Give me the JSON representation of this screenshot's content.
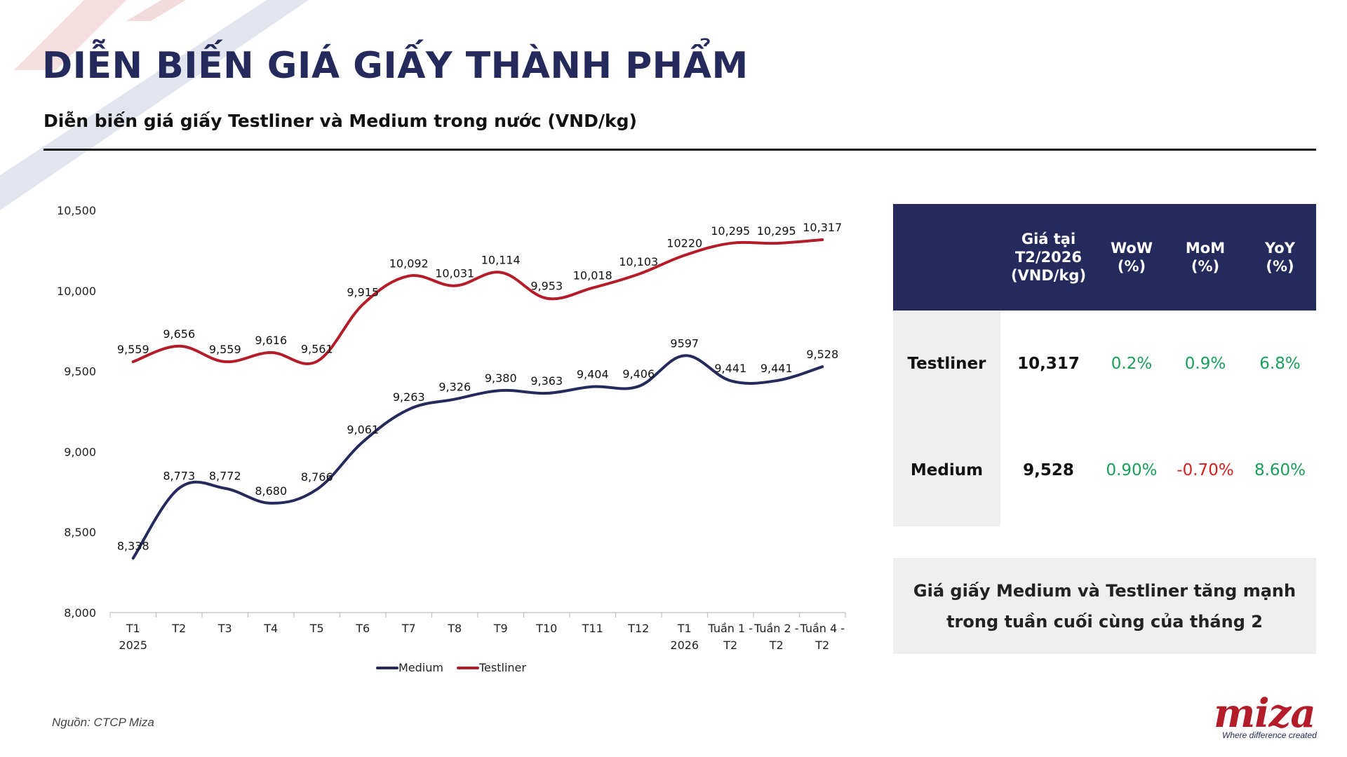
{
  "title": "DIỄN BIẾN GIÁ GIẤY THÀNH PHẨM",
  "subtitle": "Diễn biến giá giấy Testliner và Medium trong nước (VND/kg)",
  "colors": {
    "navy": "#252a5c",
    "red": "#b51c2a",
    "green": "#1a9e5a",
    "negative": "#d42020",
    "panel": "#efefef"
  },
  "chart_data": {
    "type": "line",
    "categories": [
      "T1\n2025",
      "T2",
      "T3",
      "T4",
      "T5",
      "T6",
      "T7",
      "T8",
      "T9",
      "T10",
      "T11",
      "T12",
      "T1\n2026",
      "Tuần 1 -\nT2",
      "Tuần 2 -\nT2",
      "Tuần 4 -\nT2"
    ],
    "ylim": [
      8000,
      10500
    ],
    "yticks": [
      8000,
      8500,
      9000,
      9500,
      10000,
      10500
    ],
    "ytick_labels": [
      "8,000",
      "8,500",
      "9,000",
      "9,500",
      "10,000",
      "10,500"
    ],
    "legend_position": "bottom-center",
    "series": [
      {
        "name": "Medium",
        "color": "#252a5c",
        "values": [
          8338,
          8773,
          8772,
          8680,
          8766,
          9061,
          9263,
          9326,
          9380,
          9363,
          9404,
          9406,
          9597,
          9441,
          9441,
          9528
        ],
        "labels": [
          "8,338",
          "8,773",
          "8,772",
          "8,680",
          "8,766",
          "9,061",
          "9,263",
          "9,326",
          "9,380",
          "9,363",
          "9,404",
          "9,406",
          "9597",
          "9,441",
          "9,441",
          "9,528"
        ]
      },
      {
        "name": "Testliner",
        "color": "#b51c2a",
        "values": [
          9559,
          9656,
          9559,
          9616,
          9561,
          9915,
          10092,
          10031,
          10114,
          9953,
          10018,
          10103,
          10220,
          10295,
          10295,
          10317
        ],
        "labels": [
          "9,559",
          "9,656",
          "9,559",
          "9,616",
          "9,561",
          "9,915",
          "10,092",
          "10,031",
          "10,114",
          "9,953",
          "10,018",
          "10,103",
          "10220",
          "10,295",
          "10,295",
          "10,317"
        ]
      }
    ]
  },
  "table": {
    "headers": {
      "price": "Giá tại\nT2/2026\n(VND/kg)",
      "wow": "WoW\n(%)",
      "mom": "MoM\n(%)",
      "yoy": "YoY\n(%)"
    },
    "rows": [
      {
        "name": "Testliner",
        "price": "10,317",
        "wow": "0.2%",
        "mom": "0.9%",
        "yoy": "6.8%"
      },
      {
        "name": "Medium",
        "price": "9,528",
        "wow": "0.90%",
        "mom": "-0.70%",
        "yoy": "8.60%"
      }
    ]
  },
  "note": "Giá giấy Medium và Testliner tăng mạnh\ntrong tuần cuối cùng của tháng 2",
  "source": "Nguồn: CTCP Miza",
  "logo": {
    "mark": "miza",
    "tagline": "Where difference created"
  }
}
